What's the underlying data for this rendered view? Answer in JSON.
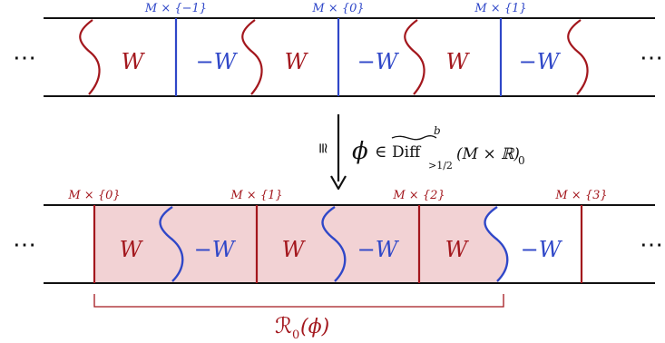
{
  "top_strip": {
    "left_dots": "⋯",
    "right_dots": "⋯",
    "slice_labels": [
      "M × {−1}",
      "M × {0}",
      "M × {1}"
    ],
    "region_labels": [
      "W",
      "−W",
      "W",
      "−W",
      "W",
      "−W"
    ]
  },
  "map": {
    "symbol": "≅",
    "phi": "ϕ",
    "member": "∈",
    "diff": "Diff",
    "superscript": "b",
    "subscript": ">1/2",
    "space": "(M × ℝ)",
    "space_subscript": "0"
  },
  "bottom_strip": {
    "left_dots": "⋯",
    "right_dots": "⋯",
    "slice_labels": [
      "M × {0}",
      "M × {1}",
      "M × {2}",
      "M × {3}"
    ],
    "region_labels": [
      "W",
      "−W",
      "W",
      "−W",
      "W",
      "−W"
    ]
  },
  "bracket": {
    "label_R": "ℛ",
    "label_sub": "0",
    "label_arg": "(ϕ)"
  },
  "colors": {
    "red": "#a3171d",
    "blue": "#2f47c8",
    "shade": "#f2d2d4",
    "black": "#111111"
  }
}
